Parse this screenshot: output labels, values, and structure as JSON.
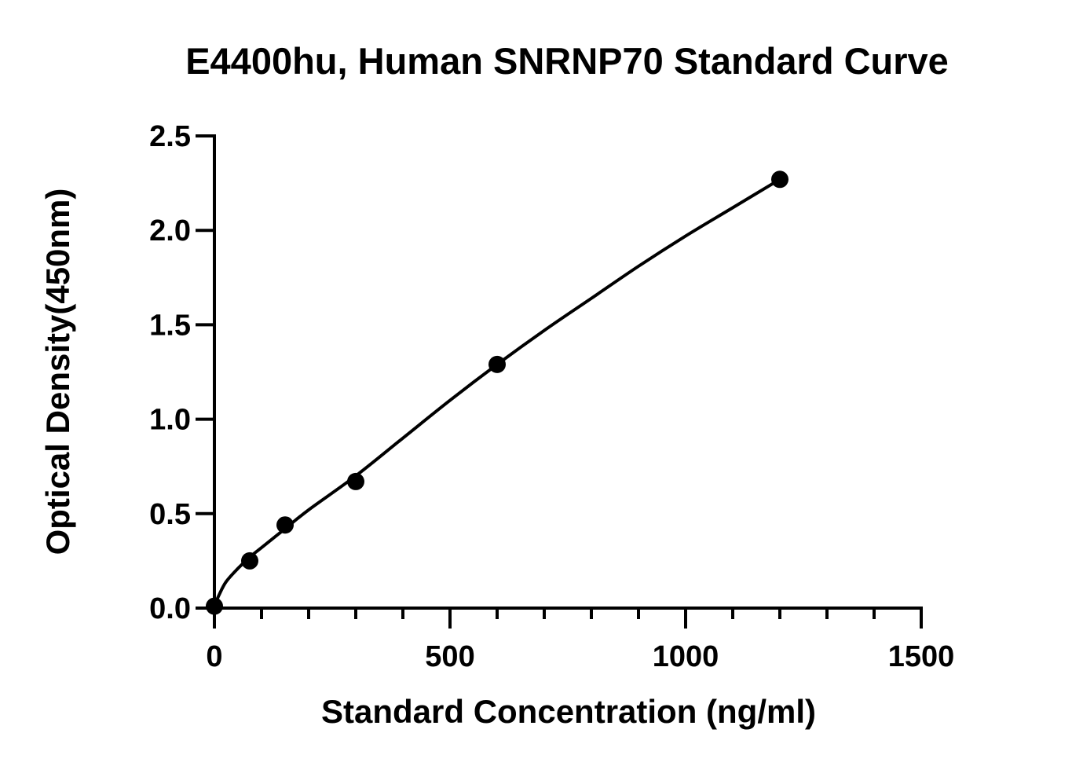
{
  "chart_data": {
    "type": "scatter",
    "title": "E4400hu, Human SNRNP70 Standard Curve",
    "xlabel": "Standard Concentration (ng/ml)",
    "ylabel": "Optical Density(450nm)",
    "xlim": [
      0,
      1500
    ],
    "ylim": [
      0,
      2.5
    ],
    "x_major_ticks": [
      0,
      500,
      1000,
      1500
    ],
    "x_tick_labels": [
      "0",
      "500",
      "1000",
      "1500"
    ],
    "x_minor_step": 100,
    "y_major_ticks": [
      0,
      0.5,
      1.0,
      1.5,
      2.0,
      2.5
    ],
    "y_tick_labels": [
      "0.0",
      "0.5",
      "1.0",
      "1.5",
      "2.0",
      "2.5"
    ],
    "grid": false,
    "legend": "none",
    "series": [
      {
        "x": [
          0,
          75,
          150,
          300,
          600,
          1200
        ],
        "y": [
          0.01,
          0.25,
          0.44,
          0.67,
          1.29,
          2.27
        ]
      }
    ],
    "fit_curve": {
      "type": "smooth",
      "x": [
        0,
        10,
        25,
        50,
        75,
        100,
        150,
        200,
        300,
        400,
        500,
        600,
        700,
        800,
        900,
        1000,
        1100,
        1200
      ],
      "y": [
        0.01,
        0.07,
        0.14,
        0.21,
        0.27,
        0.32,
        0.42,
        0.52,
        0.7,
        0.9,
        1.1,
        1.29,
        1.47,
        1.64,
        1.81,
        1.97,
        2.12,
        2.27
      ]
    },
    "colors": {
      "marks": "#000000",
      "background": "#ffffff"
    }
  }
}
